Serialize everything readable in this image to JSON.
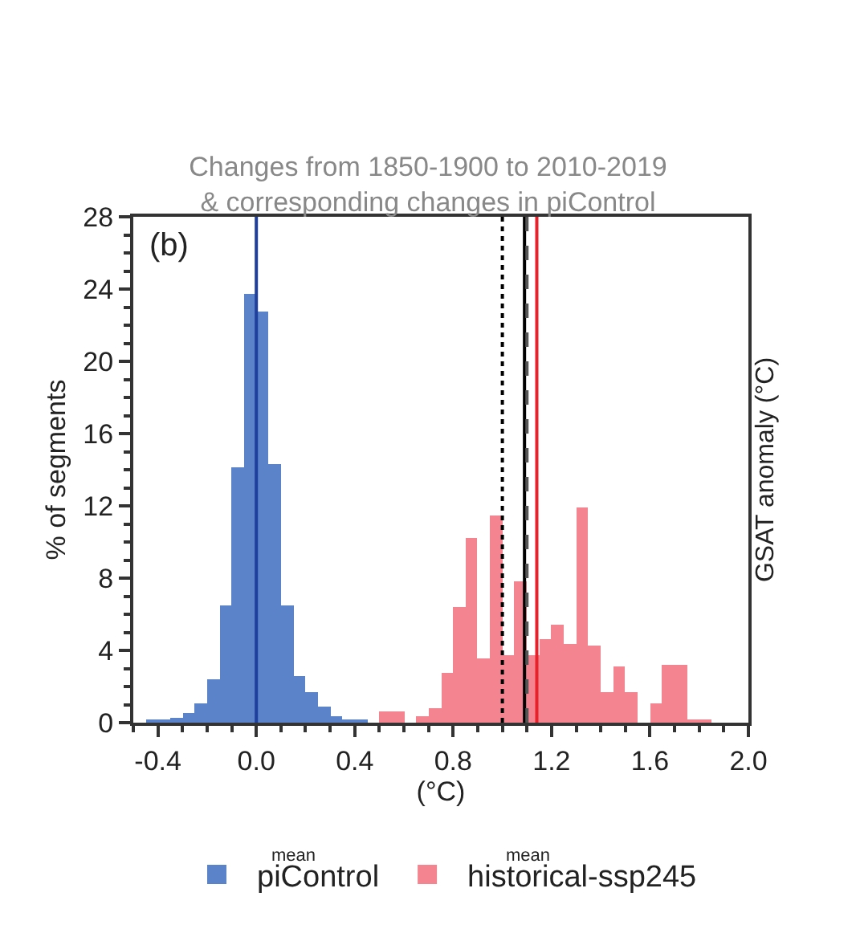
{
  "chart_data": {
    "type": "histogram",
    "title": "Changes from 1850-1900 to 2010-2019\n& corresponding changes in piControl",
    "xlabel": "(°C)",
    "ylabel": "% of segments",
    "y2label": "GSAT anomaly (°C)",
    "annotations": [
      "(b)",
      "mean",
      "mean"
    ],
    "series": [
      {
        "name": "piControl",
        "color": "#5b83c9",
        "values": [
          0.1,
          0.1,
          0.3,
          0.5,
          1.1,
          2.4,
          6.5,
          14.1,
          23.7,
          22.8,
          14.3,
          6.5,
          2.6,
          1.7,
          0.9,
          0.4,
          0.2,
          0.1,
          null,
          null,
          null,
          null,
          null,
          null,
          null,
          null,
          null,
          null,
          null,
          null,
          null,
          null,
          null,
          null,
          null,
          null,
          null,
          null,
          null,
          null,
          null,
          null,
          null,
          null,
          null,
          null
        ]
      },
      {
        "name": "historical-ssp245",
        "color": "#f4848f",
        "values": [
          null,
          null,
          null,
          null,
          null,
          null,
          null,
          null,
          null,
          null,
          null,
          null,
          null,
          null,
          null,
          null,
          null,
          null,
          null,
          0.6,
          0.6,
          0,
          0.4,
          0.8,
          2.8,
          6.4,
          10.2,
          3.6,
          11.5,
          3.7,
          7.8,
          3.7,
          4.6,
          5.4,
          4.4,
          11.9,
          4.3,
          1.7,
          3.1,
          1.7,
          0,
          1.1,
          3.2,
          3.2,
          0.2,
          0.2
        ]
      }
    ],
    "bins": [
      -0.45,
      -0.4,
      -0.35,
      -0.3,
      -0.25,
      -0.2,
      -0.15,
      -0.1,
      -0.05,
      0,
      0.05,
      0.1,
      0.15,
      0.2,
      0.25,
      0.3,
      0.35,
      0.4,
      0.45,
      0.5,
      0.55,
      0.6,
      0.65,
      0.7,
      0.75,
      0.8,
      0.85,
      0.9,
      0.95,
      1.0,
      1.05,
      1.1,
      1.15,
      1.2,
      1.25,
      1.3,
      1.35,
      1.4,
      1.45,
      1.5,
      1.55,
      1.6,
      1.65,
      1.7,
      1.75,
      1.8,
      1.85
    ],
    "ref_lines": [
      {
        "axis": "x",
        "value": 0.0,
        "color": "#1f3f9f",
        "line_style": "solid"
      },
      {
        "axis": "x",
        "value": 1.0,
        "color": "#000000",
        "line_style": "dotted"
      },
      {
        "axis": "x",
        "value": 1.09,
        "color": "#000000",
        "line_style": "solid"
      },
      {
        "axis": "x",
        "value": 1.1,
        "color": "#555555",
        "line_style": "dashed"
      },
      {
        "axis": "x",
        "value": 1.14,
        "color": "#e8202a",
        "line_style": "solid"
      }
    ],
    "xlim": [
      -0.5,
      2.0
    ],
    "xticks": [
      {
        "value": -0.4,
        "label": "-0.4"
      },
      {
        "value": 0.0,
        "label": "0.0"
      },
      {
        "value": 0.4,
        "label": "0.4"
      },
      {
        "value": 0.8,
        "label": "0.8"
      },
      {
        "value": 1.2,
        "label": "1.2"
      },
      {
        "value": 1.6,
        "label": "1.6"
      },
      {
        "value": 2.0,
        "label": "2.0"
      }
    ],
    "ylim": [
      0,
      28
    ],
    "yticks": [
      0,
      4,
      8,
      12,
      16,
      20,
      24,
      28
    ],
    "legend": "bottom"
  }
}
